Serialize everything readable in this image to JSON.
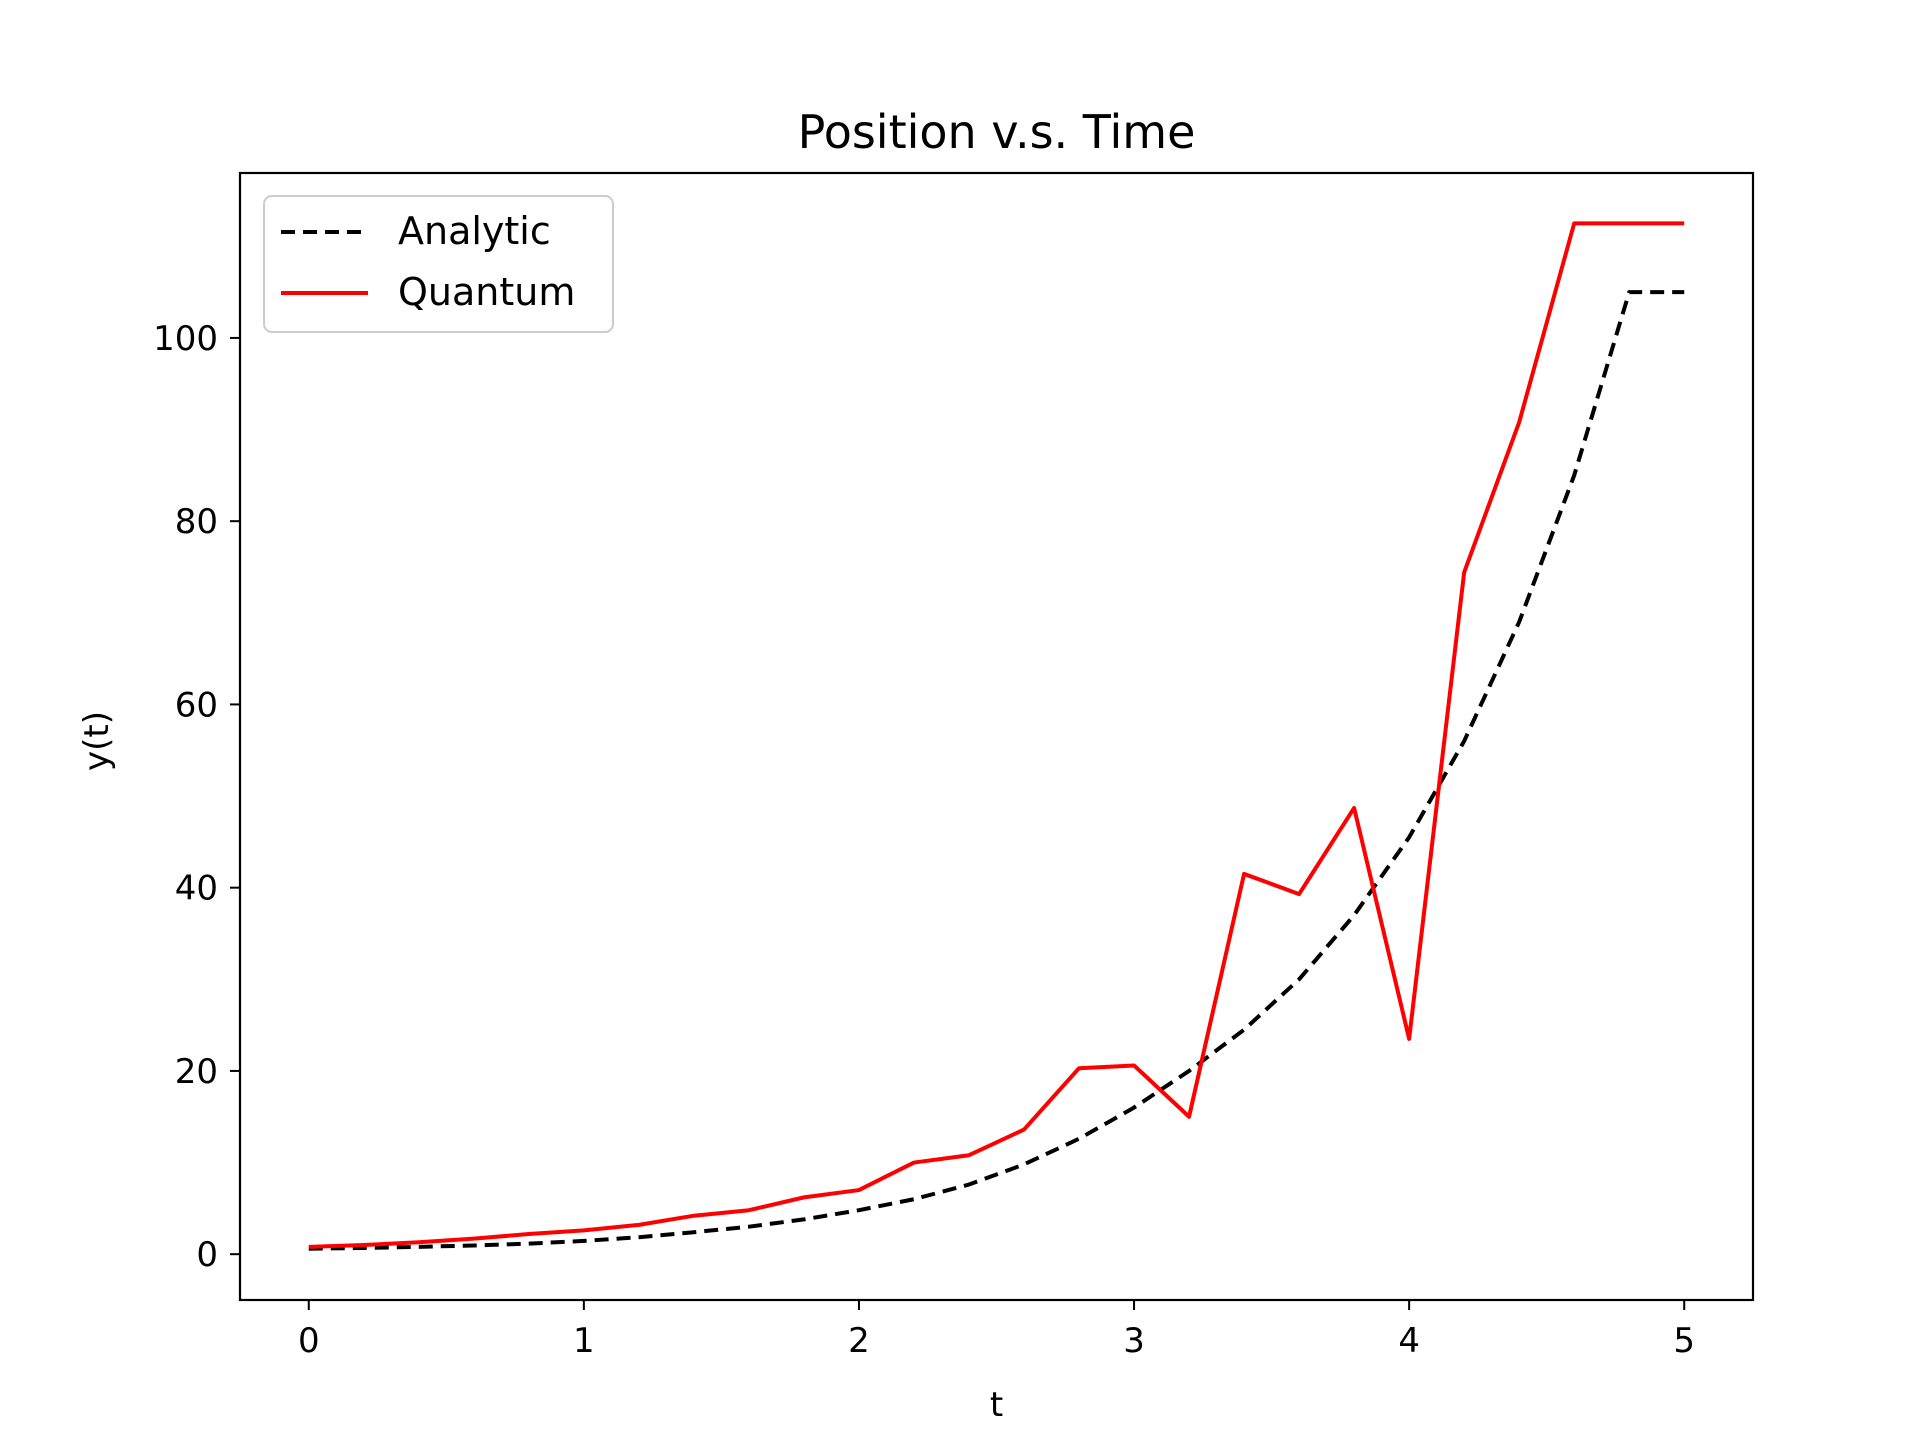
{
  "chart_data": {
    "type": "line",
    "title": "Position v.s. Time",
    "xlabel": "t",
    "ylabel": "y(t)",
    "xlim": [
      -0.25,
      5.25
    ],
    "ylim": [
      -5,
      118
    ],
    "xticks": [
      0,
      1,
      2,
      3,
      4,
      5
    ],
    "yticks": [
      0,
      20,
      40,
      60,
      80,
      100
    ],
    "xtick_labels": [
      "0",
      "1",
      "2",
      "3",
      "4",
      "5"
    ],
    "ytick_labels": [
      "0",
      "20",
      "40",
      "60",
      "80",
      "100"
    ],
    "grid": false,
    "legend_position": "top-left",
    "series": [
      {
        "name": "Analytic",
        "color": "#000000",
        "style": "dashed",
        "x": [
          0,
          0.2,
          0.4,
          0.6,
          0.8,
          1.0,
          1.2,
          1.4,
          1.6,
          1.8,
          2.0,
          2.2,
          2.4,
          2.6,
          2.8,
          3.0,
          3.2,
          3.4,
          3.6,
          3.8,
          4.0,
          4.2,
          4.4,
          4.6,
          4.8,
          5.0
        ],
        "y": [
          0.6,
          0.68,
          0.8,
          0.95,
          1.15,
          1.45,
          1.85,
          2.4,
          3.0,
          3.8,
          4.8,
          6.0,
          7.6,
          9.8,
          12.6,
          16.0,
          20.0,
          24.5,
          30.0,
          37.0,
          45.5,
          56.0,
          69.0,
          85.0,
          105.0,
          105.0
        ]
      },
      {
        "name": "Quantum",
        "color": "#ff0000",
        "style": "solid",
        "x": [
          0,
          0.2,
          0.4,
          0.6,
          0.8,
          1.0,
          1.2,
          1.4,
          1.6,
          1.8,
          2.0,
          2.2,
          2.4,
          2.6,
          2.8,
          3.0,
          3.2,
          3.4,
          3.6,
          3.8,
          4.0,
          4.2,
          4.4,
          4.6,
          4.8,
          5.0
        ],
        "y": [
          0.8,
          1.0,
          1.3,
          1.7,
          2.2,
          2.6,
          3.2,
          4.2,
          4.8,
          6.2,
          7.0,
          10.0,
          10.8,
          13.6,
          20.3,
          20.6,
          15.0,
          41.5,
          39.3,
          48.7,
          23.5,
          74.4,
          90.8,
          112.5,
          112.5,
          112.5
        ]
      }
    ]
  }
}
